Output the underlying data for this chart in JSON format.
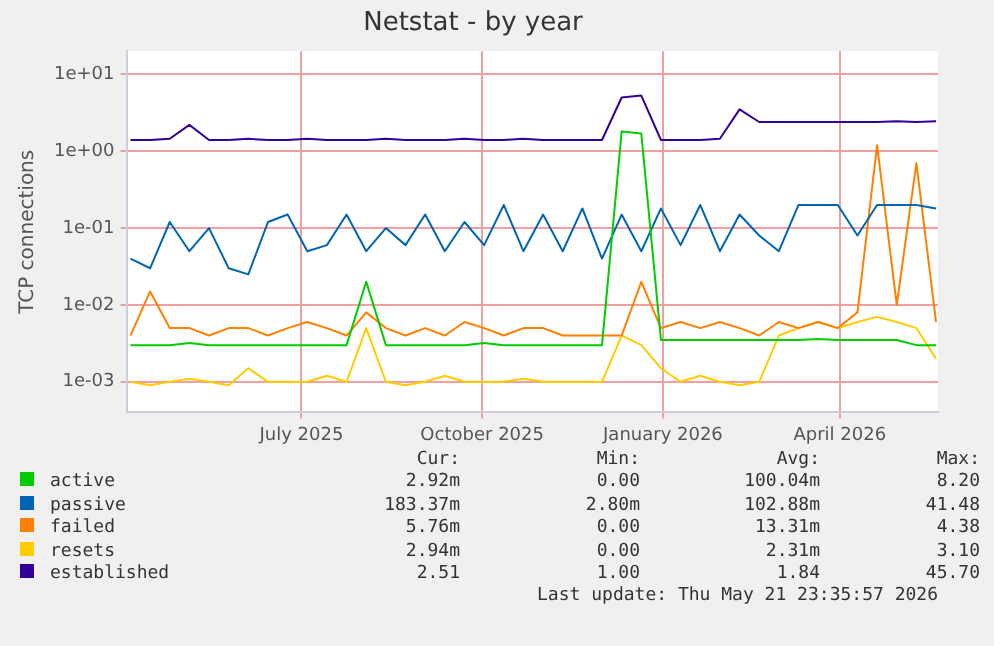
{
  "chart_data": {
    "type": "line",
    "title": "Netstat - by year",
    "ylabel": "TCP connections",
    "log": "y",
    "grid": true,
    "legend": "bottom",
    "marker": "none",
    "x": [
      "2025-04-05",
      "2025-04-15",
      "2025-04-25",
      "2025-05-05",
      "2025-05-15",
      "2025-05-25",
      "2025-06-04",
      "2025-06-14",
      "2025-06-24",
      "2025-07-04",
      "2025-07-14",
      "2025-07-24",
      "2025-08-03",
      "2025-08-13",
      "2025-08-23",
      "2025-09-02",
      "2025-09-12",
      "2025-09-22",
      "2025-10-02",
      "2025-10-12",
      "2025-10-22",
      "2025-11-01",
      "2025-11-11",
      "2025-11-21",
      "2025-12-01",
      "2025-12-11",
      "2025-12-21",
      "2025-12-31",
      "2026-01-10",
      "2026-01-20",
      "2026-01-30",
      "2026-02-09",
      "2026-02-19",
      "2026-03-01",
      "2026-03-11",
      "2026-03-21",
      "2026-03-31",
      "2026-04-10",
      "2026-04-20",
      "2026-04-30",
      "2026-05-10",
      "2026-05-20"
    ],
    "xlim": [
      "2025-04-03",
      "2026-05-21"
    ],
    "xticks": [
      {
        "value": "2025-07-01",
        "label": "July 2025"
      },
      {
        "value": "2025-10-01",
        "label": "October 2025"
      },
      {
        "value": "2026-01-01",
        "label": "January 2026"
      },
      {
        "value": "2026-04-01",
        "label": "April 2026"
      }
    ],
    "ylim": [
      0.0004,
      20
    ],
    "yticks": [
      {
        "value": 0.001,
        "label": "1e-03"
      },
      {
        "value": 0.01,
        "label": "1e-02"
      },
      {
        "value": 0.1,
        "label": "1e-01"
      },
      {
        "value": 1,
        "label": "1e+00"
      },
      {
        "value": 10,
        "label": "1e+01"
      }
    ],
    "series": [
      {
        "name": "active",
        "color": "#00cc00",
        "values": [
          0.003,
          0.003,
          0.003,
          0.0032,
          0.003,
          0.003,
          0.003,
          0.003,
          0.003,
          0.003,
          0.003,
          0.003,
          0.02,
          0.003,
          0.003,
          0.003,
          0.003,
          0.003,
          0.0032,
          0.003,
          0.003,
          0.003,
          0.003,
          0.003,
          0.003,
          1.8,
          1.7,
          0.0035,
          0.0035,
          0.0035,
          0.0035,
          0.0035,
          0.0035,
          0.0035,
          0.0035,
          0.0036,
          0.0035,
          0.0035,
          0.0035,
          0.0035,
          0.003,
          0.003
        ]
      },
      {
        "name": "passive",
        "color": "#0066b3",
        "values": [
          0.04,
          0.03,
          0.12,
          0.05,
          0.1,
          0.03,
          0.025,
          0.12,
          0.15,
          0.05,
          0.06,
          0.15,
          0.05,
          0.1,
          0.06,
          0.15,
          0.05,
          0.12,
          0.06,
          0.2,
          0.05,
          0.15,
          0.05,
          0.18,
          0.04,
          0.15,
          0.05,
          0.18,
          0.06,
          0.2,
          0.05,
          0.15,
          0.08,
          0.05,
          0.2,
          0.2,
          0.2,
          0.08,
          0.2,
          0.2,
          0.2,
          0.18
        ]
      },
      {
        "name": "failed",
        "color": "#ff8000",
        "values": [
          0.004,
          0.015,
          0.005,
          0.005,
          0.004,
          0.005,
          0.005,
          0.004,
          0.005,
          0.006,
          0.005,
          0.004,
          0.008,
          0.005,
          0.004,
          0.005,
          0.004,
          0.006,
          0.005,
          0.004,
          0.005,
          0.005,
          0.004,
          0.004,
          0.004,
          0.004,
          0.02,
          0.005,
          0.006,
          0.005,
          0.006,
          0.005,
          0.004,
          0.006,
          0.005,
          0.006,
          0.005,
          0.008,
          1.2,
          0.01,
          0.7,
          0.006
        ]
      },
      {
        "name": "resets",
        "color": "#ffcc00",
        "values": [
          0.001,
          0.0009,
          0.001,
          0.0011,
          0.001,
          0.0009,
          0.0015,
          0.001,
          0.001,
          0.001,
          0.0012,
          0.001,
          0.005,
          0.001,
          0.0009,
          0.001,
          0.0012,
          0.001,
          0.001,
          0.001,
          0.0011,
          0.001,
          0.001,
          0.001,
          0.001,
          0.004,
          0.003,
          0.0015,
          0.001,
          0.0012,
          0.001,
          0.0009,
          0.001,
          0.004,
          0.005,
          0.006,
          0.005,
          0.006,
          0.007,
          0.006,
          0.005,
          0.002
        ]
      },
      {
        "name": "established",
        "color": "#330099",
        "values": [
          1.4,
          1.4,
          1.45,
          2.2,
          1.4,
          1.4,
          1.45,
          1.4,
          1.4,
          1.45,
          1.4,
          1.4,
          1.4,
          1.45,
          1.4,
          1.4,
          1.4,
          1.45,
          1.4,
          1.4,
          1.45,
          1.4,
          1.4,
          1.4,
          1.4,
          5,
          5.3,
          1.4,
          1.4,
          1.4,
          1.45,
          3.5,
          2.4,
          2.4,
          2.4,
          2.4,
          2.4,
          2.4,
          2.4,
          2.45,
          2.4,
          2.45
        ]
      }
    ],
    "annotations": [
      "Cur:",
      "Min:",
      "Avg:",
      "Max:",
      "2.92m",
      "0.00",
      "100.04m",
      "8.20",
      "183.37m",
      "2.80m",
      "102.88m",
      "41.48",
      "5.76m",
      "0.00",
      "13.31m",
      "4.38",
      "2.94m",
      "0.00",
      "2.31m",
      "3.10",
      "2.51",
      "1.00",
      "1.84",
      "45.70",
      "Last update: Thu May 21 23:35:57 2026"
    ]
  }
}
